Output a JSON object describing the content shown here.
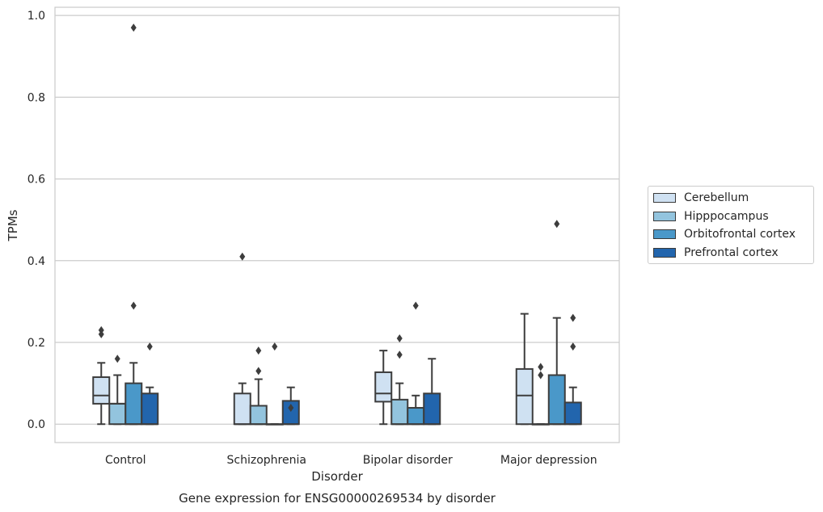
{
  "chart_data": {
    "type": "box",
    "title": "Gene expression for ENSG00000269534 by disorder",
    "xlabel": "Disorder",
    "ylabel": "TPMs",
    "ylim": [
      -0.045,
      1.02
    ],
    "yticks": [
      "0.0",
      "0.2",
      "0.4",
      "0.6",
      "0.8",
      "1.0"
    ],
    "ytick_values": [
      0.0,
      0.2,
      0.4,
      0.6,
      0.8,
      1.0
    ],
    "grid": "horizontal",
    "legend_position": "right",
    "categories": [
      "Control",
      "Schizophrenia",
      "Bipolar disorder",
      "Major depression"
    ],
    "series": [
      {
        "name": "Cerebellum",
        "color": "#cfe1f2",
        "boxes": [
          {
            "whislo": 0.0,
            "q1": 0.05,
            "med": 0.07,
            "q3": 0.115,
            "whishi": 0.15,
            "fliers": [
              0.22,
              0.23
            ]
          },
          {
            "whislo": 0.0,
            "q1": 0.0,
            "med": 0.0,
            "q3": 0.075,
            "whishi": 0.1,
            "fliers": [
              0.41
            ]
          },
          {
            "whislo": 0.0,
            "q1": 0.055,
            "med": 0.075,
            "q3": 0.127,
            "whishi": 0.18,
            "fliers": []
          },
          {
            "whislo": 0.0,
            "q1": 0.0,
            "med": 0.07,
            "q3": 0.135,
            "whishi": 0.27,
            "fliers": []
          }
        ]
      },
      {
        "name": "Hipppocampus",
        "color": "#93c4de",
        "boxes": [
          {
            "whislo": 0.0,
            "q1": 0.0,
            "med": 0.05,
            "q3": 0.05,
            "whishi": 0.12,
            "fliers": [
              0.16
            ]
          },
          {
            "whislo": 0.0,
            "q1": 0.0,
            "med": 0.0,
            "q3": 0.045,
            "whishi": 0.11,
            "fliers": [
              0.13,
              0.18
            ]
          },
          {
            "whislo": 0.0,
            "q1": 0.0,
            "med": 0.0,
            "q3": 0.06,
            "whishi": 0.1,
            "fliers": [
              0.17,
              0.21
            ]
          },
          {
            "whislo": 0.0,
            "q1": 0.0,
            "med": 0.0,
            "q3": 0.0,
            "whishi": 0.0,
            "fliers": [
              0.12,
              0.14
            ]
          }
        ]
      },
      {
        "name": "Orbitofrontal cortex",
        "color": "#4a98c9",
        "boxes": [
          {
            "whislo": 0.0,
            "q1": 0.0,
            "med": 0.0,
            "q3": 0.1,
            "whishi": 0.15,
            "fliers": [
              0.29,
              0.97
            ]
          },
          {
            "whislo": 0.0,
            "q1": 0.0,
            "med": 0.0,
            "q3": 0.0,
            "whishi": 0.0,
            "fliers": [
              0.19
            ]
          },
          {
            "whislo": 0.0,
            "q1": 0.0,
            "med": 0.0,
            "q3": 0.04,
            "whishi": 0.07,
            "fliers": [
              0.29
            ]
          },
          {
            "whislo": 0.0,
            "q1": 0.0,
            "med": 0.0,
            "q3": 0.12,
            "whishi": 0.26,
            "fliers": [
              0.49
            ]
          }
        ]
      },
      {
        "name": "Prefrontal cortex",
        "color": "#2265ad",
        "boxes": [
          {
            "whislo": 0.0,
            "q1": 0.0,
            "med": 0.0,
            "q3": 0.075,
            "whishi": 0.09,
            "fliers": [
              0.19
            ]
          },
          {
            "whislo": 0.0,
            "q1": 0.0,
            "med": 0.0,
            "q3": 0.057,
            "whishi": 0.09,
            "fliers": [
              0.04
            ]
          },
          {
            "whislo": 0.0,
            "q1": 0.0,
            "med": 0.0,
            "q3": 0.075,
            "whishi": 0.16,
            "fliers": []
          },
          {
            "whislo": 0.0,
            "q1": 0.0,
            "med": 0.0,
            "q3": 0.053,
            "whishi": 0.09,
            "fliers": [
              0.19,
              0.26
            ]
          }
        ]
      }
    ]
  }
}
